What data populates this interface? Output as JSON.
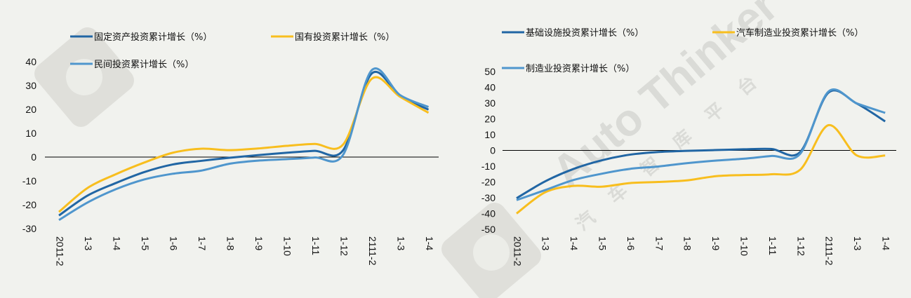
{
  "watermark": {
    "brand": "Auto Thinker",
    "cn": "汽车智库平台"
  },
  "chart_data": [
    {
      "type": "line",
      "categories": [
        "2011-2",
        "1-3",
        "1-4",
        "1-5",
        "1-6",
        "1-7",
        "1-8",
        "1-9",
        "1-10",
        "1-11",
        "1-12",
        "2111-2",
        "1-3",
        "1-4"
      ],
      "category_labels": [
        "2011-2",
        "1-3",
        "1-4",
        "1-5",
        "1-6",
        "1-7",
        "1-8",
        "1-9",
        "1-10",
        "1-11",
        "1-12",
        "2111-2",
        "1-3",
        "1-4"
      ],
      "ylim": [
        -30,
        40
      ],
      "yticks": [
        -30,
        -20,
        -10,
        0,
        10,
        20,
        30,
        40
      ],
      "legend": "top",
      "series": [
        {
          "name": "固定资产投资累计增长（%）",
          "color": "#2166a4",
          "values": [
            -24.5,
            -16.2,
            -10.9,
            -6.3,
            -3.1,
            -1.6,
            -0.3,
            0.8,
            1.8,
            2.6,
            2.9,
            35.0,
            25.6,
            19.9
          ]
        },
        {
          "name": "国有投资累计增长（%）",
          "color": "#f8be1e",
          "values": [
            -23.0,
            -13.0,
            -7.2,
            -2.3,
            1.8,
            3.5,
            2.9,
            3.6,
            4.7,
            5.5,
            5.3,
            32.8,
            25.3,
            18.6
          ]
        },
        {
          "name": "民间投资累计增长（%）",
          "color": "#4f96cd",
          "values": [
            -26.4,
            -19.1,
            -13.5,
            -9.4,
            -7.0,
            -5.7,
            -2.8,
            -1.5,
            -0.9,
            -0.2,
            1.0,
            36.4,
            26.0,
            21.0
          ]
        }
      ]
    },
    {
      "type": "line",
      "categories": [
        "2011-2",
        "1-3",
        "1-4",
        "1-5",
        "1-6",
        "1-7",
        "1-8",
        "1-9",
        "1-10",
        "1-11",
        "1-12",
        "2111-2",
        "1-3",
        "1-4"
      ],
      "category_labels": [
        "2011-2",
        "1-3",
        "1-4",
        "1-5",
        "1-6",
        "1-7",
        "1-8",
        "1-9",
        "1-10",
        "1-11",
        "1-12",
        "2111-2",
        "1-3",
        "1-4"
      ],
      "ylim": [
        -50,
        50
      ],
      "yticks": [
        -50,
        -40,
        -30,
        -20,
        -10,
        0,
        10,
        20,
        30,
        40,
        50
      ],
      "legend": "top",
      "series": [
        {
          "name": "基础设施投资累计增长（%）",
          "color": "#2166a4",
          "values": [
            -30.3,
            -19.7,
            -11.8,
            -6.3,
            -2.7,
            -1.0,
            -0.3,
            0.2,
            0.7,
            0.9,
            -1.1,
            36.6,
            29.7,
            18.4
          ]
        },
        {
          "name": "汽车制造业投资累计增长（%）",
          "color": "#f8be1e",
          "values": [
            -40.0,
            -26.6,
            -22.5,
            -23.0,
            -20.7,
            -20.0,
            -19.0,
            -16.4,
            -15.6,
            -15.1,
            -12.3,
            16.0,
            -3.2,
            -3.2
          ]
        },
        {
          "name": "制造业投资累计增长（%）",
          "color": "#4f96cd",
          "values": [
            -31.5,
            -25.2,
            -18.8,
            -14.8,
            -11.7,
            -10.2,
            -8.1,
            -6.5,
            -5.3,
            -3.5,
            -2.2,
            37.3,
            29.8,
            23.8
          ]
        }
      ]
    }
  ]
}
